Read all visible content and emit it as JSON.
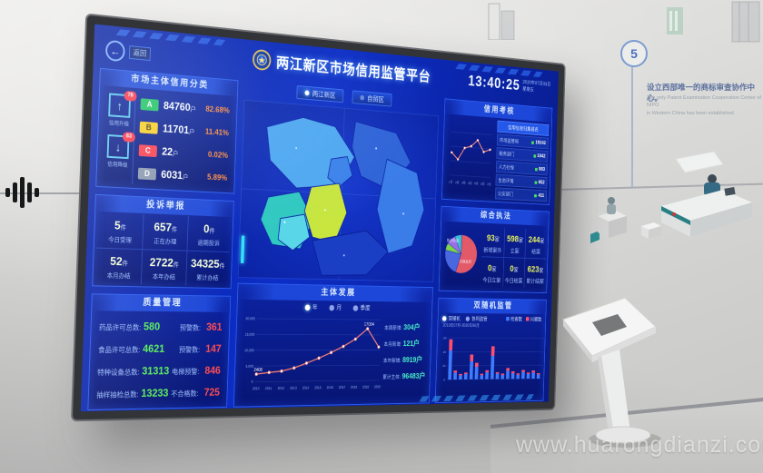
{
  "photo": {
    "watermark_text": "www.huarongdianzi.com"
  },
  "wall": {
    "timeline_step": "5",
    "milestone_cn": "设立西部唯一的商标审查协作中心。",
    "milestone_en1": "The only Patent Examination Cooperation Center of NIPO",
    "milestone_en2": "in Western China has been established."
  },
  "screen": {
    "back_label": "返回",
    "header": {
      "title": "两江新区市场信用监管平台",
      "time": "13:40:25",
      "date": "2020年07月03日",
      "weekday": "星期五"
    },
    "map_tabs": [
      {
        "label": "两江新区"
      },
      {
        "label": "自贸区"
      }
    ],
    "credit_class": {
      "title": "市场主体信用分类",
      "upgrade_label": "信用升级",
      "upgrade_badge": "78",
      "downgrade_label": "信用降级",
      "downgrade_badge": "63",
      "rows": [
        {
          "grade": "A",
          "count": "84760",
          "unit": "户",
          "pct": "82.68%",
          "color": "#1ec45c",
          "text_color": "#ffffff"
        },
        {
          "grade": "B",
          "count": "11701",
          "unit": "户",
          "pct": "11.41%",
          "color": "#ffd21e",
          "text_color": "#4a3b00"
        },
        {
          "grade": "C",
          "count": "22",
          "unit": "户",
          "pct": "0.02%",
          "color": "#ff3b4a",
          "text_color": "#ffffff"
        },
        {
          "grade": "D",
          "count": "6031",
          "unit": "户",
          "pct": "5.89%",
          "color": "#8b98ad",
          "text_color": "#ffffff"
        }
      ]
    },
    "complaints": {
      "title": "投诉举报",
      "cells": [
        {
          "value": "5",
          "unit": "件",
          "label": "今日受理"
        },
        {
          "value": "657",
          "unit": "件",
          "label": "正在办理"
        },
        {
          "value": "0",
          "unit": "件",
          "label": "逾期投诉"
        },
        {
          "value": "52",
          "unit": "件",
          "label": "本月办结"
        },
        {
          "value": "2722",
          "unit": "件",
          "label": "本年办结"
        },
        {
          "value": "34325",
          "unit": "件",
          "label": "累计办结"
        }
      ]
    },
    "quality": {
      "title": "质量管理",
      "rows": [
        {
          "label": "药品许可总数:",
          "value": "580",
          "warn_label": "预警数:",
          "warn_value": "361"
        },
        {
          "label": "食品许可总数:",
          "value": "4621",
          "warn_label": "预警数:",
          "warn_value": "147"
        },
        {
          "label": "特种设备总数:",
          "value": "31313",
          "warn_label": "电梯预警:",
          "warn_value": "846"
        },
        {
          "label": "抽样抽检总数:",
          "value": "13233",
          "warn_label": "不合格数:",
          "warn_value": "725"
        }
      ]
    },
    "development": {
      "title": "主体发展",
      "legend": [
        "年",
        "月",
        "季度"
      ],
      "stats": [
        {
          "label": "本周新增:",
          "value": "304户"
        },
        {
          "label": "本月新增:",
          "value": "121户"
        },
        {
          "label": "本年新增:",
          "value": "8919户"
        },
        {
          "label": "累计主体:",
          "value": "96483户"
        }
      ]
    },
    "credit_check": {
      "title": "信用考核",
      "list_header": "信用信息归集排名",
      "rows": [
        {
          "name": "市场监管局",
          "value": "19242"
        },
        {
          "name": "税务部门",
          "value": "1842"
        },
        {
          "name": "人力社保",
          "value": "983"
        },
        {
          "name": "生态环境",
          "value": "652"
        },
        {
          "name": "公安部门",
          "value": "411"
        }
      ]
    },
    "enforcement": {
      "title": "综合执法",
      "cells": [
        {
          "value": "93",
          "unit": "家",
          "label": "新增案件"
        },
        {
          "value": "598",
          "unit": "家",
          "label": "立案"
        },
        {
          "value": "244",
          "unit": "家",
          "label": "结案"
        },
        {
          "value": "0",
          "unit": "家",
          "label": "今日立案"
        },
        {
          "value": "0",
          "unit": "家",
          "label": "今日结案"
        },
        {
          "value": "623",
          "unit": "家",
          "label": "累计结案"
        }
      ]
    },
    "random_check": {
      "title": "双随机监管",
      "toggles": [
        "双随机",
        "协同监管"
      ],
      "legend": [
        {
          "label": "检查数"
        },
        {
          "label": "问题数"
        }
      ],
      "caption": "2019年07月-2020年06月"
    },
    "colors": {
      "screen_bg": "#0d2ec6",
      "panel_border": "#2b5cf0",
      "accent_cyan": "#35e0ff",
      "alert_red": "#ff3344",
      "ok_green": "#58f05a",
      "warn_orange": "#ff8a3c"
    }
  },
  "chart_data": [
    {
      "id": "development",
      "type": "line",
      "title": "主体发展",
      "color": "#ff8070",
      "x": [
        "2010",
        "2011",
        "2012",
        "2013",
        "2014",
        "2015",
        "2016",
        "2017",
        "2018",
        "2019",
        "2020"
      ],
      "values": [
        2408,
        2900,
        3300,
        4300,
        5800,
        7400,
        9200,
        11200,
        13600,
        17034,
        11000
      ],
      "ylim": [
        0,
        20000
      ],
      "yticks": [
        "0",
        "5,000",
        "10,000",
        "15,000",
        "20,000"
      ],
      "point_labels": {
        "0": "2408",
        "9": "17034"
      }
    },
    {
      "id": "credit_trend",
      "type": "line",
      "title": "信用考核",
      "color": "#ff8a7a",
      "x": [
        "1月",
        "2月",
        "3月",
        "4月",
        "5月",
        "6月",
        "7月"
      ],
      "values": [
        420,
        300,
        520,
        560,
        680,
        470,
        520
      ],
      "ylim": [
        0,
        800
      ]
    },
    {
      "id": "enforcement_pie",
      "type": "pie",
      "title": "综合执法",
      "slices": [
        {
          "label": "行政处罚",
          "value": 55,
          "color": "#e25a68"
        },
        {
          "label": "执法检查",
          "value": 23,
          "color": "#4a66e0"
        },
        {
          "label": "一般程序",
          "value": 6,
          "color": "#7cd84a"
        },
        {
          "label": "简易程序",
          "value": 9,
          "color": "#9a6ee8"
        },
        {
          "label": "其他",
          "value": 7,
          "color": "#3bbfd8"
        }
      ]
    },
    {
      "id": "random_bars",
      "type": "stacked_bar",
      "title": "双随机监管",
      "ylim": [
        0,
        60
      ],
      "yticks": [
        "0",
        "20",
        "40",
        "60"
      ],
      "series": [
        {
          "name": "检查数",
          "color": "#3d7bff",
          "values": [
            42,
            10,
            6,
            8,
            26,
            18,
            6,
            10,
            34,
            8,
            6,
            12,
            8,
            6,
            10,
            7,
            9,
            6
          ]
        },
        {
          "name": "问题数",
          "color": "#ff4f6e",
          "values": [
            16,
            3,
            2,
            2,
            10,
            6,
            2,
            3,
            14,
            2,
            2,
            4,
            3,
            2,
            3,
            2,
            3,
            2
          ]
        }
      ]
    }
  ]
}
